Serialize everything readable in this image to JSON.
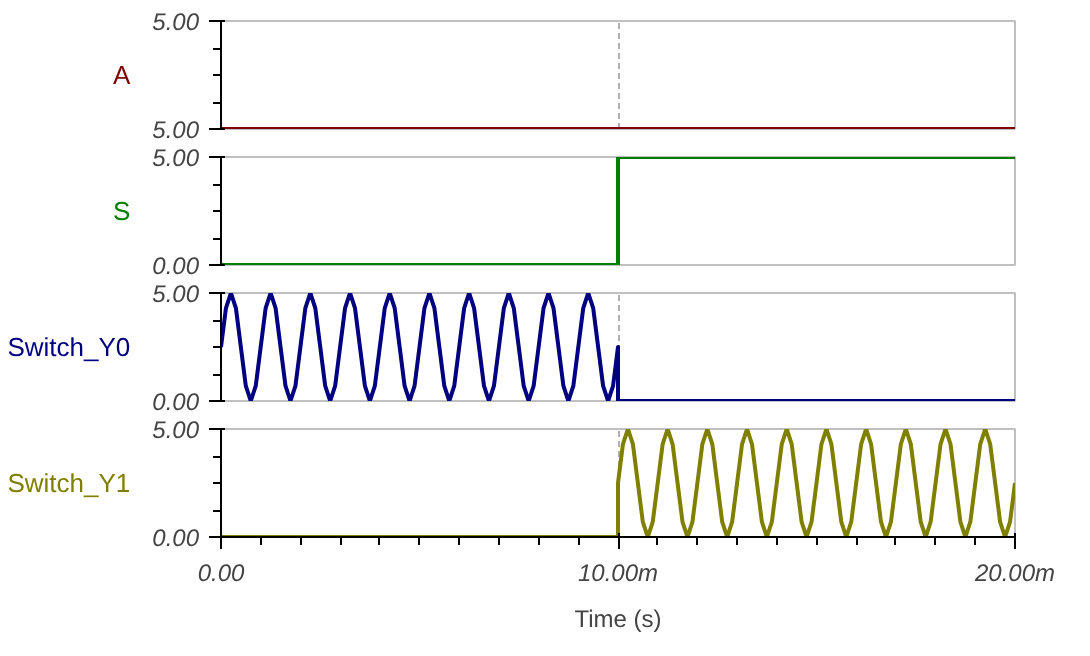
{
  "chart_data": [
    {
      "type": "line",
      "ylabel": "A",
      "xlim": [
        0,
        20
      ],
      "xticks": [
        0,
        10,
        20
      ],
      "ylim": [
        5,
        5.004
      ],
      "yticks": [
        {
          "value": 5,
          "label": "5.00"
        },
        {
          "value": 5.004,
          "label": "5.00"
        }
      ],
      "grid": "x",
      "tick_labels": "y",
      "series": [
        {
          "color": "#800000",
          "x": [
            0,
            20
          ],
          "values": [
            5,
            5
          ]
        }
      ]
    },
    {
      "type": "line",
      "ylabel": "S",
      "xlim": [
        0,
        20
      ],
      "xticks": [
        0,
        10,
        20
      ],
      "ylim": [
        0,
        5
      ],
      "yticks": [
        {
          "value": 0,
          "label": "0.00"
        },
        {
          "value": 5,
          "label": "5.00"
        }
      ],
      "grid": "x",
      "tick_labels": "y",
      "series": [
        {
          "color": "#008000",
          "x": [
            0,
            10,
            10,
            20
          ],
          "values": [
            0,
            0,
            5,
            5
          ]
        }
      ]
    },
    {
      "type": "line",
      "ylabel": "Switch_Y0",
      "xlim": [
        0,
        20
      ],
      "xticks": [
        0,
        10,
        20
      ],
      "ylim": [
        0,
        5
      ],
      "yticks": [
        {
          "value": 0,
          "label": "0.00"
        },
        {
          "value": 5,
          "label": "5.00"
        }
      ],
      "grid": "x",
      "tick_labels": "y",
      "series": [
        {
          "color": "#000080",
          "x": [
            0,
            0.125,
            0.25,
            0.375,
            0.5,
            0.625,
            0.75,
            0.875,
            1,
            1.125,
            1.25,
            1.375,
            1.5,
            1.625,
            1.75,
            1.875,
            2,
            2.125,
            2.25,
            2.375,
            2.5,
            2.625,
            2.75,
            2.875,
            3,
            3.125,
            3.25,
            3.375,
            3.5,
            3.625,
            3.75,
            3.875,
            4,
            4.125,
            4.25,
            4.375,
            4.5,
            4.625,
            4.75,
            4.875,
            5,
            5.125,
            5.25,
            5.375,
            5.5,
            5.625,
            5.75,
            5.875,
            6,
            6.125,
            6.25,
            6.375,
            6.5,
            6.625,
            6.75,
            6.875,
            7,
            7.125,
            7.25,
            7.375,
            7.5,
            7.625,
            7.75,
            7.875,
            8,
            8.125,
            8.25,
            8.375,
            8.5,
            8.625,
            8.75,
            8.875,
            9,
            9.125,
            9.25,
            9.375,
            9.5,
            9.625,
            9.75,
            9.875,
            10,
            10,
            20
          ],
          "values": [
            2.5,
            4.3,
            5,
            4.3,
            2.5,
            0.7,
            0,
            0.7,
            2.5,
            4.3,
            5,
            4.3,
            2.5,
            0.7,
            0,
            0.7,
            2.5,
            4.3,
            5,
            4.3,
            2.5,
            0.7,
            0,
            0.7,
            2.5,
            4.3,
            5,
            4.3,
            2.5,
            0.7,
            0,
            0.7,
            2.5,
            4.3,
            5,
            4.3,
            2.5,
            0.7,
            0,
            0.7,
            2.5,
            4.3,
            5,
            4.3,
            2.5,
            0.7,
            0,
            0.7,
            2.5,
            4.3,
            5,
            4.3,
            2.5,
            0.7,
            0,
            0.7,
            2.5,
            4.3,
            5,
            4.3,
            2.5,
            0.7,
            0,
            0.7,
            2.5,
            4.3,
            5,
            4.3,
            2.5,
            0.7,
            0,
            0.7,
            2.5,
            4.3,
            5,
            4.3,
            2.5,
            0.7,
            0,
            0.7,
            2.5,
            0,
            0
          ]
        }
      ]
    },
    {
      "type": "line",
      "ylabel": "Switch_Y1",
      "xlabel": "Time (s)",
      "xlim": [
        0,
        20
      ],
      "xticks": [
        {
          "value": 0,
          "label": "0.00"
        },
        {
          "value": 10,
          "label": "10.00m"
        },
        {
          "value": 20,
          "label": "20.00m"
        }
      ],
      "ylim": [
        0,
        5
      ],
      "yticks": [
        {
          "value": 0,
          "label": "0.00"
        },
        {
          "value": 5,
          "label": "5.00"
        }
      ],
      "grid": "x",
      "series": [
        {
          "color": "#808000",
          "x": [
            0,
            10,
            10,
            10.125,
            10.25,
            10.375,
            10.5,
            10.625,
            10.75,
            10.875,
            11,
            11.125,
            11.25,
            11.375,
            11.5,
            11.625,
            11.75,
            11.875,
            12,
            12.125,
            12.25,
            12.375,
            12.5,
            12.625,
            12.75,
            12.875,
            13,
            13.125,
            13.25,
            13.375,
            13.5,
            13.625,
            13.75,
            13.875,
            14,
            14.125,
            14.25,
            14.375,
            14.5,
            14.625,
            14.75,
            14.875,
            15,
            15.125,
            15.25,
            15.375,
            15.5,
            15.625,
            15.75,
            15.875,
            16,
            16.125,
            16.25,
            16.375,
            16.5,
            16.625,
            16.75,
            16.875,
            17,
            17.125,
            17.25,
            17.375,
            17.5,
            17.625,
            17.75,
            17.875,
            18,
            18.125,
            18.25,
            18.375,
            18.5,
            18.625,
            18.75,
            18.875,
            19,
            19.125,
            19.25,
            19.375,
            19.5,
            19.625,
            19.75,
            19.875,
            20
          ],
          "values": [
            0,
            0,
            2.5,
            4.3,
            5,
            4.3,
            2.5,
            0.7,
            0,
            0.7,
            2.5,
            4.3,
            5,
            4.3,
            2.5,
            0.7,
            0,
            0.7,
            2.5,
            4.3,
            5,
            4.3,
            2.5,
            0.7,
            0,
            0.7,
            2.5,
            4.3,
            5,
            4.3,
            2.5,
            0.7,
            0,
            0.7,
            2.5,
            4.3,
            5,
            4.3,
            2.5,
            0.7,
            0,
            0.7,
            2.5,
            4.3,
            5,
            4.3,
            2.5,
            0.7,
            0,
            0.7,
            2.5,
            4.3,
            5,
            4.3,
            2.5,
            0.7,
            0,
            0.7,
            2.5,
            4.3,
            5,
            4.3,
            2.5,
            0.7,
            0,
            0.7,
            2.5,
            4.3,
            5,
            4.3,
            2.5,
            0.7,
            0,
            0.7,
            2.5,
            4.3,
            5,
            4.3,
            2.5,
            0.7,
            0,
            0.7,
            2.5
          ]
        }
      ]
    }
  ]
}
